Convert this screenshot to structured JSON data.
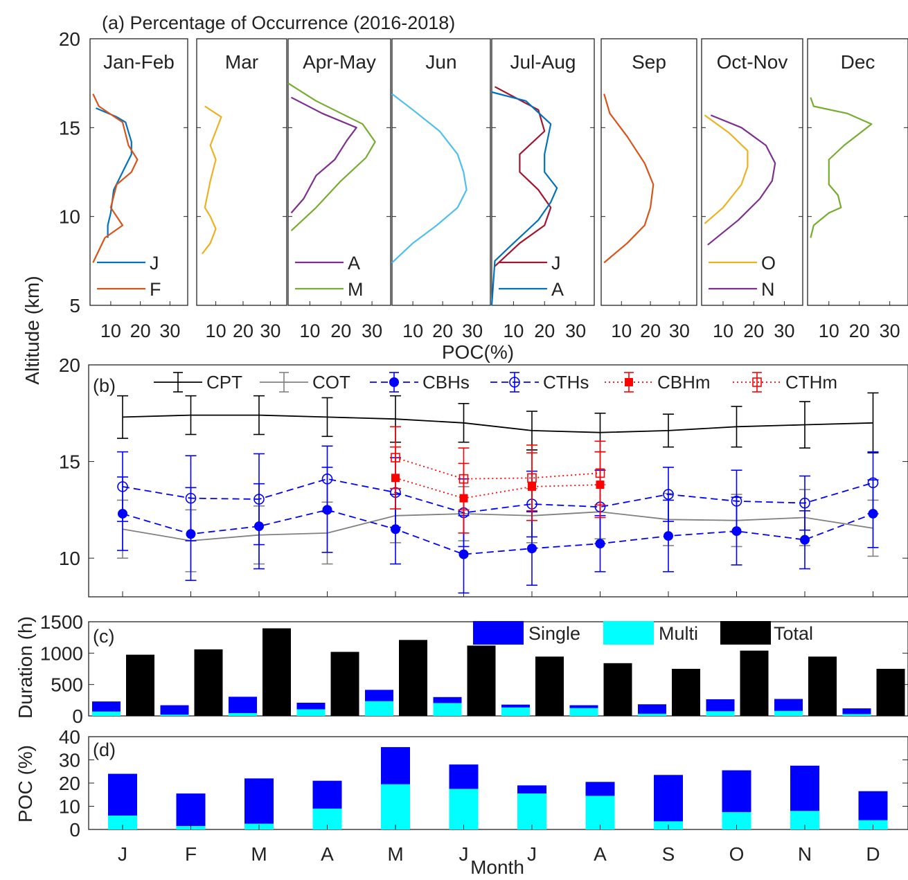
{
  "figure": {
    "ylabel_shared": "Altitude (km)",
    "xlabel_shared": "Month"
  },
  "chart_data": [
    {
      "type": "line",
      "panel": "(a)",
      "title": "(a)  Percentage of Occurrence (2016-2018)",
      "xlabel": "POC(%)",
      "ylabel": "Altitude (km)",
      "ylim": [
        5,
        20
      ],
      "xlim": [
        3,
        36
      ],
      "yticks": [
        5,
        10,
        15,
        20
      ],
      "xticks": [
        10,
        20,
        30
      ],
      "subpanels": [
        {
          "label": "Jan-Feb",
          "series": [
            {
              "name": "J",
              "color": "#0072BD",
              "points": [
                [
                  9,
                  8.8
                ],
                [
                  9,
                  9.5
                ],
                [
                  10,
                  10.2
                ],
                [
                  11,
                  11.5
                ],
                [
                  14,
                  12.5
                ],
                [
                  17,
                  13.5
                ],
                [
                  17,
                  14.2
                ],
                [
                  15,
                  15.3
                ],
                [
                  12,
                  15.6
                ],
                [
                  5,
                  16.1
                ]
              ]
            },
            {
              "name": "F",
              "color": "#D95319",
              "points": [
                [
                  4,
                  7.4
                ],
                [
                  8,
                  8.8
                ],
                [
                  14,
                  9.5
                ],
                [
                  10,
                  10.5
                ],
                [
                  12,
                  11.8
                ],
                [
                  17,
                  12.5
                ],
                [
                  19,
                  13.2
                ],
                [
                  16,
                  14
                ],
                [
                  14,
                  15.3
                ],
                [
                  6,
                  16.2
                ],
                [
                  4,
                  16.9
                ]
              ]
            }
          ]
        },
        {
          "label": "Mar",
          "series": [
            {
              "name": "",
              "color": "#EDB120",
              "points": [
                [
                  5,
                  7.9
                ],
                [
                  8,
                  8.5
                ],
                [
                  10,
                  9.3
                ],
                [
                  8,
                  10
                ],
                [
                  6,
                  10.5
                ],
                [
                  8,
                  12
                ],
                [
                  10,
                  13.2
                ],
                [
                  8,
                  14
                ],
                [
                  10,
                  14.8
                ],
                [
                  12,
                  15.6
                ],
                [
                  6,
                  16.2
                ]
              ]
            }
          ]
        },
        {
          "label": "Apr-May",
          "series": [
            {
              "name": "A",
              "color": "#7E2F8E",
              "points": [
                [
                  4,
                  10.2
                ],
                [
                  8,
                  11
                ],
                [
                  12,
                  12.3
                ],
                [
                  18,
                  13.2
                ],
                [
                  22,
                  14.3
                ],
                [
                  25,
                  15
                ],
                [
                  14,
                  15.8
                ],
                [
                  4,
                  16.7
                ]
              ]
            },
            {
              "name": "M",
              "color": "#77AC30",
              "points": [
                [
                  4,
                  9.2
                ],
                [
                  12,
                  10.5
                ],
                [
                  20,
                  12
                ],
                [
                  28,
                  13.3
                ],
                [
                  31,
                  14.2
                ],
                [
                  27,
                  15.2
                ],
                [
                  12,
                  16.5
                ],
                [
                  3,
                  17.5
                ]
              ]
            }
          ]
        },
        {
          "label": "Jun",
          "series": [
            {
              "name": "",
              "color": "#4DBEEE",
              "points": [
                [
                  3,
                  7.4
                ],
                [
                  10,
                  8.5
                ],
                [
                  18,
                  9.5
                ],
                [
                  25,
                  10.5
                ],
                [
                  28,
                  11.5
                ],
                [
                  27,
                  12.5
                ],
                [
                  25,
                  13.5
                ],
                [
                  19,
                  14.8
                ],
                [
                  10,
                  16
                ],
                [
                  3,
                  16.9
                ]
              ]
            }
          ]
        },
        {
          "label": "Jul-Aug",
          "series": [
            {
              "name": "J",
              "color": "#A2142F",
              "points": [
                [
                  4,
                  7.2
                ],
                [
                  12,
                  8.5
                ],
                [
                  20,
                  9.5
                ],
                [
                  22,
                  10.5
                ],
                [
                  18,
                  11.5
                ],
                [
                  12,
                  12.5
                ],
                [
                  12,
                  13.5
                ],
                [
                  20,
                  14.8
                ],
                [
                  18,
                  16
                ],
                [
                  4,
                  17.3
                ]
              ]
            },
            {
              "name": "A",
              "color": "#0072BD",
              "points": [
                [
                  3,
                  5
                ],
                [
                  4,
                  7.5
                ],
                [
                  10,
                  8.5
                ],
                [
                  18,
                  9.8
                ],
                [
                  22,
                  10.8
                ],
                [
                  24,
                  11.6
                ],
                [
                  20,
                  12.5
                ],
                [
                  20,
                  13.5
                ],
                [
                  22,
                  15.2
                ],
                [
                  14,
                  16.5
                ],
                [
                  3,
                  17
                ]
              ]
            }
          ]
        },
        {
          "label": "Sep",
          "series": [
            {
              "name": "",
              "color": "#D95319",
              "points": [
                [
                  4,
                  7.4
                ],
                [
                  12,
                  8.5
                ],
                [
                  18,
                  9.5
                ],
                [
                  20,
                  10.5
                ],
                [
                  21,
                  11.8
                ],
                [
                  18,
                  13
                ],
                [
                  12,
                  14.5
                ],
                [
                  6,
                  15.8
                ],
                [
                  4,
                  16.9
                ]
              ]
            }
          ]
        },
        {
          "label": "Oct-Nov",
          "series": [
            {
              "name": "O",
              "color": "#EDB120",
              "points": [
                [
                  4,
                  9.6
                ],
                [
                  10,
                  10.5
                ],
                [
                  16,
                  11.8
                ],
                [
                  18,
                  12.8
                ],
                [
                  18,
                  13.7
                ],
                [
                  12,
                  14.7
                ],
                [
                  4,
                  15.7
                ]
              ]
            },
            {
              "name": "N",
              "color": "#7E2F8E",
              "points": [
                [
                  5,
                  8.4
                ],
                [
                  15,
                  9.8
                ],
                [
                  22,
                  11
                ],
                [
                  26,
                  12
                ],
                [
                  27,
                  13
                ],
                [
                  24,
                  14
                ],
                [
                  16,
                  15
                ],
                [
                  6,
                  15.7
                ]
              ]
            }
          ]
        },
        {
          "label": "Dec",
          "series": [
            {
              "name": "",
              "color": "#77AC30",
              "points": [
                [
                  4,
                  8.8
                ],
                [
                  5,
                  9.5
                ],
                [
                  10,
                  10.2
                ],
                [
                  14,
                  10.5
                ],
                [
                  13,
                  11.2
                ],
                [
                  10,
                  11.8
                ],
                [
                  10,
                  13.2
                ],
                [
                  15,
                  14
                ],
                [
                  24,
                  15.2
                ],
                [
                  16,
                  15.8
                ],
                [
                  5,
                  16.2
                ],
                [
                  4,
                  16.7
                ]
              ]
            }
          ]
        }
      ]
    },
    {
      "type": "line",
      "panel": "(b)",
      "title": "(b)",
      "ylim": [
        8,
        20
      ],
      "yticks": [
        10,
        15,
        20
      ],
      "categories": [
        "J",
        "F",
        "M",
        "A",
        "M",
        "J",
        "J",
        "A",
        "S",
        "O",
        "N",
        "D"
      ],
      "legend": "top",
      "series": [
        {
          "name": "CPT",
          "color": "#000000",
          "style": "solid",
          "marker": "none",
          "values": [
            17.3,
            17.4,
            17.4,
            17.3,
            17.2,
            17.0,
            16.6,
            16.5,
            16.6,
            16.8,
            16.9,
            17.0
          ],
          "errors": [
            1.1,
            1.0,
            1.0,
            1.0,
            1.2,
            1.0,
            1.0,
            1.0,
            0.85,
            1.05,
            1.2,
            1.55
          ]
        },
        {
          "name": "COT",
          "color": "#808080",
          "style": "solid",
          "marker": "none",
          "values": [
            11.5,
            10.9,
            11.2,
            11.3,
            12.2,
            12.3,
            12.2,
            12.4,
            12.0,
            11.95,
            12.1,
            11.55
          ],
          "errors": [
            1.5,
            1.6,
            1.5,
            1.6,
            1.4,
            1.4,
            1.4,
            1.4,
            1.35,
            1.35,
            1.45,
            1.45
          ]
        },
        {
          "name": "CBHs",
          "color": "#0000FF",
          "style": "dashed",
          "marker": "filled-circle",
          "values": [
            12.3,
            11.25,
            11.65,
            12.5,
            11.5,
            10.2,
            10.5,
            10.75,
            11.15,
            11.4,
            10.95,
            12.3
          ],
          "errors": [
            1.9,
            2.4,
            2.2,
            2.2,
            1.8,
            2.0,
            1.9,
            1.45,
            1.85,
            1.75,
            1.5,
            1.75
          ]
        },
        {
          "name": "CTHs",
          "color": "#0000FF",
          "style": "dashed",
          "marker": "open-circle",
          "values": [
            13.7,
            13.1,
            13.05,
            14.1,
            13.4,
            12.35,
            12.8,
            12.65,
            13.3,
            12.95,
            12.85,
            13.9
          ],
          "errors": [
            1.8,
            2.2,
            2.35,
            1.7,
            1.8,
            1.75,
            1.7,
            1.9,
            1.4,
            1.6,
            1.4,
            1.6
          ]
        },
        {
          "name": "CBHm",
          "color": "#FF0000",
          "style": "dotted",
          "marker": "filled-square",
          "values": [
            null,
            null,
            null,
            null,
            14.15,
            13.1,
            13.7,
            13.8,
            null,
            null,
            null,
            null
          ],
          "errors": [
            null,
            null,
            null,
            null,
            1.6,
            1.8,
            1.75,
            1.7,
            null,
            null,
            null,
            null
          ]
        },
        {
          "name": "CTHm",
          "color": "#FF0000",
          "style": "dotted",
          "marker": "open-square",
          "values": [
            null,
            null,
            null,
            null,
            15.2,
            14.1,
            14.15,
            14.4,
            null,
            null,
            null,
            null
          ],
          "errors": [
            null,
            null,
            null,
            null,
            1.6,
            1.6,
            1.7,
            1.65,
            null,
            null,
            null,
            null
          ]
        }
      ]
    },
    {
      "type": "bar",
      "panel": "(c)",
      "title": "(c)",
      "ylabel": "Duration (h)",
      "ylim": [
        0,
        1500
      ],
      "yticks": [
        0,
        500,
        1000,
        1500
      ],
      "categories": [
        "J",
        "F",
        "M",
        "A",
        "M",
        "J",
        "J",
        "A",
        "S",
        "O",
        "N",
        "D"
      ],
      "legend": "top-right",
      "series": [
        {
          "name": "Single",
          "color": "#0000FF",
          "values": [
            230,
            170,
            305,
            210,
            415,
            300,
            180,
            170,
            185,
            265,
            270,
            120
          ]
        },
        {
          "name": "Multi",
          "color": "#00FFFF",
          "values": [
            70,
            20,
            45,
            105,
            235,
            205,
            135,
            125,
            35,
            75,
            80,
            30
          ]
        },
        {
          "name": "Total",
          "color": "#000000",
          "values": [
            975,
            1060,
            1395,
            1020,
            1210,
            1120,
            945,
            840,
            750,
            1040,
            945,
            750
          ]
        }
      ]
    },
    {
      "type": "bar",
      "panel": "(d)",
      "title": "(d)",
      "ylabel": "POC (%)",
      "xlabel": "Month",
      "ylim": [
        0,
        40
      ],
      "yticks": [
        0,
        10,
        20,
        30,
        40
      ],
      "categories": [
        "J",
        "F",
        "M",
        "A",
        "M",
        "J",
        "J",
        "A",
        "S",
        "O",
        "N",
        "D"
      ],
      "series": [
        {
          "name": "Single",
          "color": "#0000FF",
          "values": [
            24,
            15.5,
            22,
            21,
            35.5,
            28,
            19,
            20.5,
            23.5,
            25.5,
            27.5,
            16.5
          ]
        },
        {
          "name": "Multi",
          "color": "#00FFFF",
          "values": [
            6,
            1.5,
            2.5,
            9,
            19.5,
            17.5,
            15.5,
            14.5,
            3.5,
            7.5,
            8,
            4
          ]
        }
      ]
    }
  ]
}
